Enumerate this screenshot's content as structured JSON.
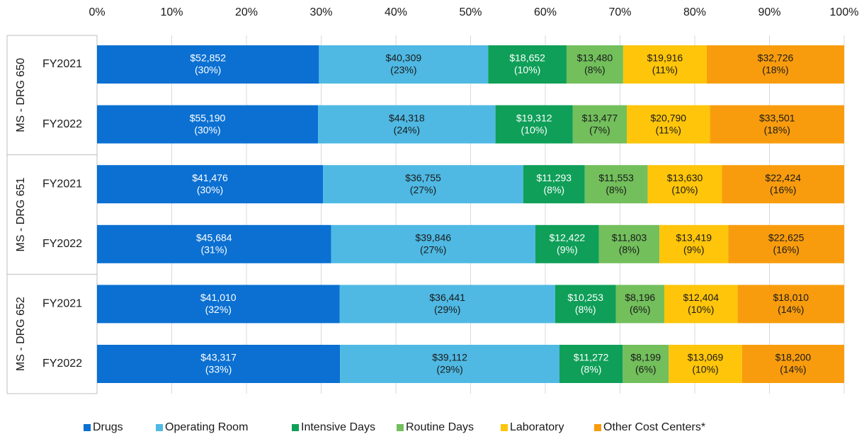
{
  "chart_data": {
    "type": "stacked_bar_horizontal",
    "stack": "percent",
    "xlim": [
      0,
      100
    ],
    "xticks": [
      {
        "value": 0,
        "label": "0%"
      },
      {
        "value": 10,
        "label": "10%"
      },
      {
        "value": 20,
        "label": "20%"
      },
      {
        "value": 30,
        "label": "30%"
      },
      {
        "value": 40,
        "label": "40%"
      },
      {
        "value": 50,
        "label": "50%"
      },
      {
        "value": 60,
        "label": "60%"
      },
      {
        "value": 70,
        "label": "70%"
      },
      {
        "value": 80,
        "label": "80%"
      },
      {
        "value": 90,
        "label": "90%"
      },
      {
        "value": 100,
        "label": "100%"
      }
    ],
    "grid": true,
    "legend": "bottom",
    "groups": [
      {
        "name": "MS - DRG 650",
        "categories": [
          "FY2021",
          "FY2022"
        ]
      },
      {
        "name": "MS - DRG 651",
        "categories": [
          "FY2021",
          "FY2022"
        ]
      },
      {
        "name": "MS - DRG 652",
        "categories": [
          "FY2021",
          "FY2022"
        ]
      }
    ],
    "series": [
      {
        "name": "Drugs",
        "color": "#0b70d2",
        "label_color": "#ffffff",
        "values": [
          52852,
          55190,
          41476,
          45684,
          41010,
          43317
        ],
        "value_labels": [
          "$52,852",
          "$55,190",
          "$41,476",
          "$45,684",
          "$41,010",
          "$43,317"
        ],
        "share_labels": [
          "(30%)",
          "(30%)",
          "(30%)",
          "(31%)",
          "(32%)",
          "(33%)"
        ]
      },
      {
        "name": "Operating Room",
        "color": "#4fb9e3",
        "label_color": "#1a1a1a",
        "values": [
          40309,
          44318,
          36755,
          39846,
          36441,
          39112
        ],
        "value_labels": [
          "$40,309",
          "$44,318",
          "$36,755",
          "$39,846",
          "$36,441",
          "$39,112"
        ],
        "share_labels": [
          "(23%)",
          "(24%)",
          "(27%)",
          "(27%)",
          "(29%)",
          "(29%)"
        ]
      },
      {
        "name": "Intensive Days",
        "color": "#0f9f58",
        "label_color": "#ffffff",
        "values": [
          18652,
          19312,
          11293,
          12422,
          10253,
          11272
        ],
        "value_labels": [
          "$18,652",
          "$19,312",
          "$11,293",
          "$12,422",
          "$10,253",
          "$11,272"
        ],
        "share_labels": [
          "(10%)",
          "(10%)",
          "(8%)",
          "(9%)",
          "(8%)",
          "(8%)"
        ]
      },
      {
        "name": "Routine Days",
        "color": "#72bf5c",
        "label_color": "#1a1a1a",
        "values": [
          13480,
          13477,
          11553,
          11803,
          8196,
          8199
        ],
        "value_labels": [
          "$13,480",
          "$13,477",
          "$11,553",
          "$11,803",
          "$8,196",
          "$8,199"
        ],
        "share_labels": [
          "(8%)",
          "(7%)",
          "(8%)",
          "(8%)",
          "(6%)",
          "(6%)"
        ]
      },
      {
        "name": "Laboratory",
        "color": "#ffc50a",
        "label_color": "#1a1a1a",
        "values": [
          19916,
          20790,
          13630,
          13419,
          12404,
          13069
        ],
        "value_labels": [
          "$19,916",
          "$20,790",
          "$13,630",
          "$13,419",
          "$12,404",
          "$13,069"
        ],
        "share_labels": [
          "(11%)",
          "(11%)",
          "(10%)",
          "(9%)",
          "(10%)",
          "(10%)"
        ]
      },
      {
        "name": "Other Cost Centers*",
        "color": "#f89c0e",
        "label_color": "#1a1a1a",
        "values": [
          32726,
          33501,
          22424,
          22625,
          18010,
          18200
        ],
        "value_labels": [
          "$32,726",
          "$33,501",
          "$22,424",
          "$22,625",
          "$18,010",
          "$18,200"
        ],
        "share_labels": [
          "(18%)",
          "(18%)",
          "(16%)",
          "(16%)",
          "(14%)",
          "(14%)"
        ]
      }
    ]
  }
}
